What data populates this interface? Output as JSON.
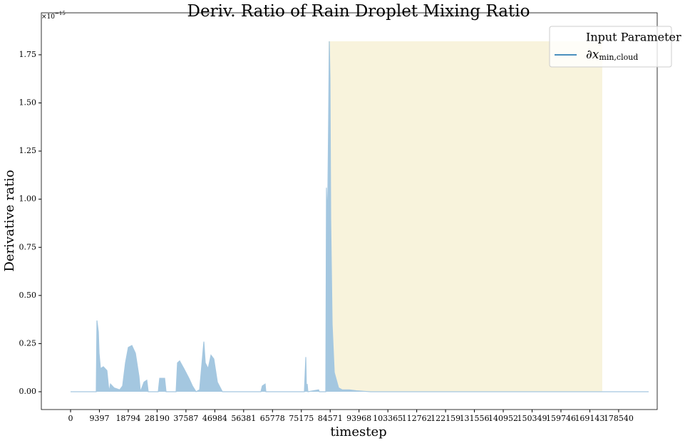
{
  "chart_data": {
    "type": "area",
    "title": "Deriv. Ratio of Rain Droplet Mixing Ratio",
    "xlabel": "timestep",
    "ylabel": "Derivative ratio",
    "y_offset_label": "×10",
    "y_offset_exponent": "−15",
    "legend_title": "Input Parameter",
    "legend_corner": "upper right",
    "xlim": [
      -9520,
      191100
    ],
    "ylim": [
      -0.0925,
      1.968
    ],
    "xticks": [
      0,
      9397,
      18794,
      28190,
      37587,
      46984,
      56381,
      65778,
      75175,
      84571,
      93968,
      103365,
      112762,
      122159,
      131556,
      140952,
      150349,
      159746,
      169143,
      178540
    ],
    "yticks": [
      {
        "value": 0,
        "label": "0.00"
      },
      {
        "value": 0.25,
        "label": "0.25"
      },
      {
        "value": 0.5,
        "label": "0.50"
      },
      {
        "value": 0.75,
        "label": "0.75"
      },
      {
        "value": 1,
        "label": "1.00"
      },
      {
        "value": 1.25,
        "label": "1.25"
      },
      {
        "value": 1.5,
        "label": "1.50"
      },
      {
        "value": 1.75,
        "label": "1.75"
      }
    ],
    "highlight": {
      "x": [
        84050,
        173200
      ],
      "y": [
        0,
        1.82
      ],
      "color": "#f8f3dc"
    },
    "x": [
      0,
      8360,
      8590,
      9060,
      9290,
      9750,
      10680,
      11840,
      12540,
      13000,
      14160,
      16020,
      16950,
      17880,
      18810,
      19970,
      21130,
      22290,
      22760,
      23920,
      24840,
      25310,
      28560,
      29030,
      30650,
      31110,
      34370,
      34830,
      35530,
      36920,
      38550,
      39710,
      40870,
      42030,
      43420,
      43880,
      44810,
      45740,
      46670,
      47830,
      49460,
      62000,
      62460,
      63390,
      63620,
      76160,
      76630,
      76860,
      77090,
      77320,
      80800,
      81040,
      83130,
      83360,
      83590,
      83820,
      84050,
      84290,
      84520,
      84750,
      85220,
      85910,
      87310,
      88470,
      90790,
      93110,
      97760,
      188320
    ],
    "series": [
      {
        "name": "∂x",
        "name_subscript": "min,cloud",
        "color": "#4a8fbd",
        "fill": "#a4c7e0",
        "values": [
          0,
          0,
          0.37,
          0.31,
          0.2,
          0.12,
          0.13,
          0.11,
          0,
          0.04,
          0.02,
          0.01,
          0.03,
          0.15,
          0.23,
          0.24,
          0.2,
          0.08,
          0,
          0.05,
          0.06,
          0,
          0,
          0.07,
          0.07,
          0,
          0,
          0.15,
          0.16,
          0.12,
          0.07,
          0.03,
          0,
          0.01,
          0.26,
          0.15,
          0.12,
          0.19,
          0.17,
          0.05,
          0,
          0,
          0.03,
          0.04,
          0,
          0,
          0.18,
          0,
          0.04,
          0,
          0.01,
          0,
          0,
          1.06,
          0.9,
          1.05,
          1.41,
          1.82,
          1.63,
          0.9,
          0.35,
          0.1,
          0.02,
          0.01,
          0.01,
          0.005,
          0,
          0
        ]
      }
    ]
  }
}
